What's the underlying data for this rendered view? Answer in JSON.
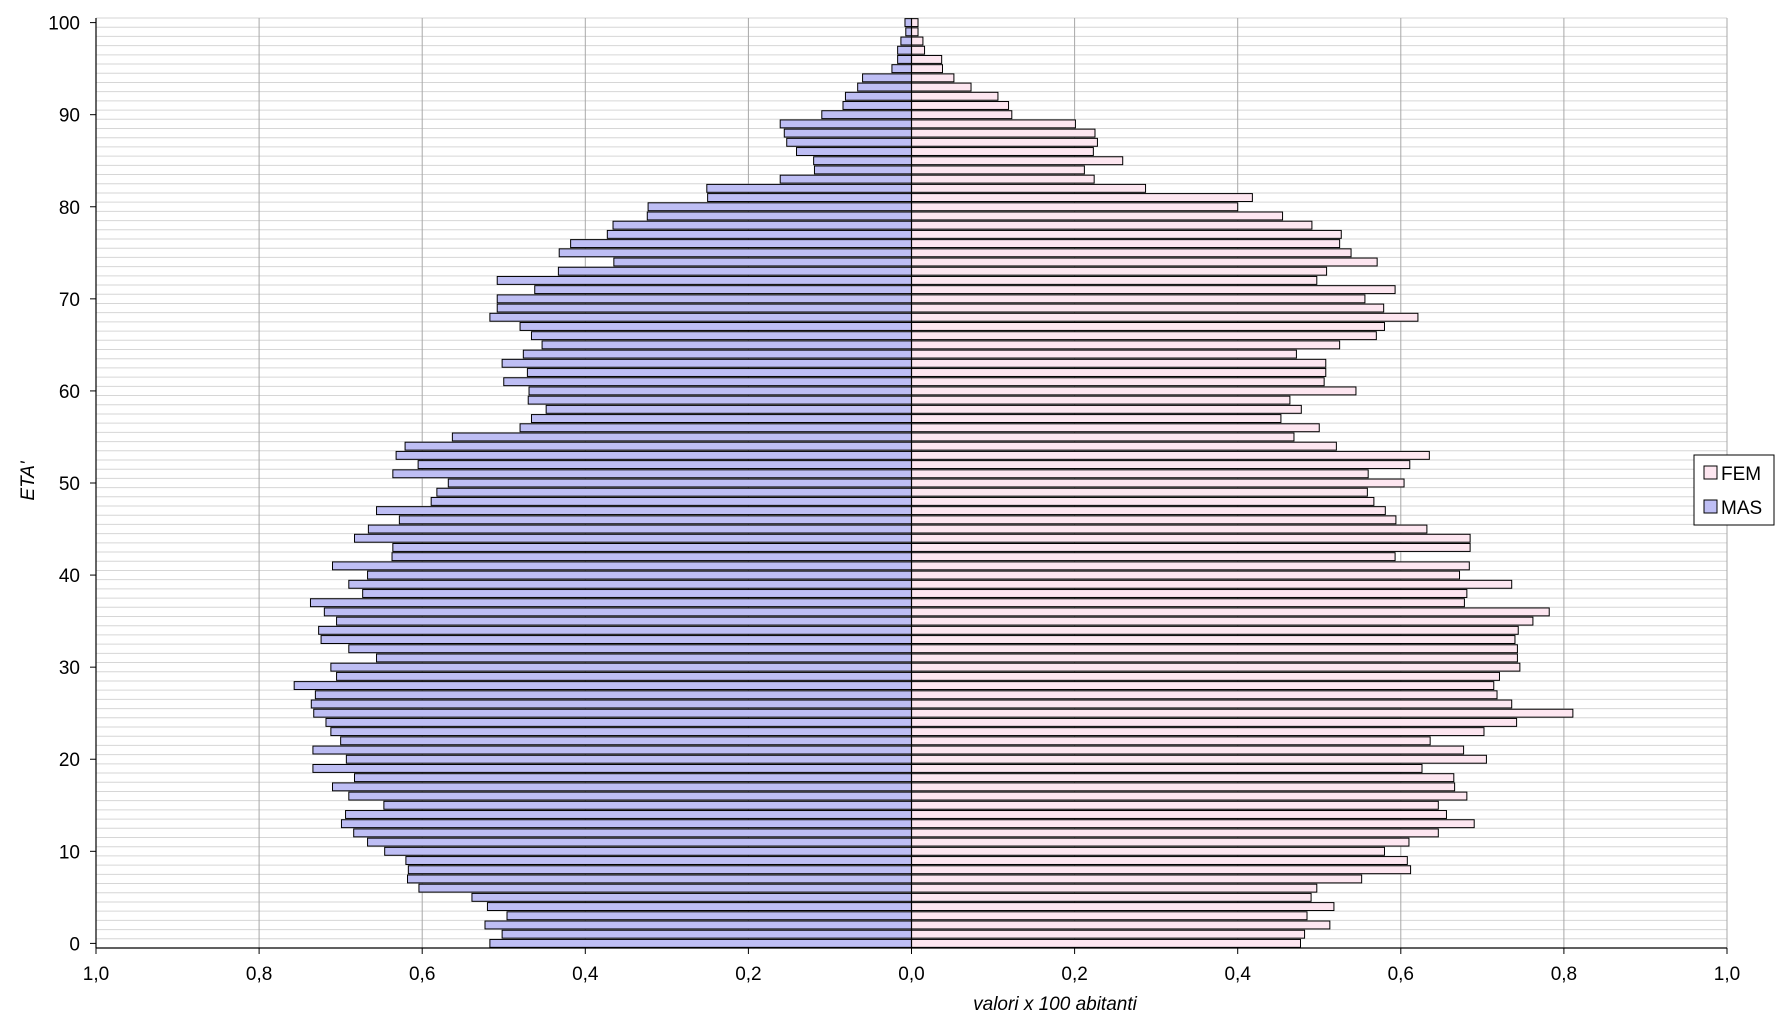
{
  "chart_data": {
    "type": "bar",
    "orientation": "horizontal-population-pyramid",
    "xlabel": "valori x 100 abitanti",
    "ylabel": "ETA'",
    "xlim": [
      -1.0,
      1.0
    ],
    "ylim": [
      0,
      100
    ],
    "x_tick_labels": [
      "1,0",
      "0,8",
      "0,6",
      "0,4",
      "0,2",
      "0,0",
      "0,2",
      "0,4",
      "0,6",
      "0,8",
      "1,0"
    ],
    "y_tick_labels": [
      "0",
      "10",
      "20",
      "30",
      "40",
      "50",
      "60",
      "70",
      "80",
      "90",
      "100"
    ],
    "grid": "vertical major + horizontal minor",
    "legend_position": "right",
    "categories": [
      0,
      1,
      2,
      3,
      4,
      5,
      6,
      7,
      8,
      9,
      10,
      11,
      12,
      13,
      14,
      15,
      16,
      17,
      18,
      19,
      20,
      21,
      22,
      23,
      24,
      25,
      26,
      27,
      28,
      29,
      30,
      31,
      32,
      33,
      34,
      35,
      36,
      37,
      38,
      39,
      40,
      41,
      42,
      43,
      44,
      45,
      46,
      47,
      48,
      49,
      50,
      51,
      52,
      53,
      54,
      55,
      56,
      57,
      58,
      59,
      60,
      61,
      62,
      63,
      64,
      65,
      66,
      67,
      68,
      69,
      70,
      71,
      72,
      73,
      74,
      75,
      76,
      77,
      78,
      79,
      80,
      81,
      82,
      83,
      84,
      85,
      86,
      87,
      88,
      89,
      90,
      91,
      92,
      93,
      94,
      95,
      96,
      97,
      98,
      99,
      100
    ],
    "series": [
      {
        "name": "FEM",
        "color": "#fde6f0",
        "values": [
          0.477,
          0.482,
          0.513,
          0.485,
          0.518,
          0.49,
          0.497,
          0.552,
          0.612,
          0.608,
          0.58,
          0.61,
          0.646,
          0.69,
          0.656,
          0.646,
          0.681,
          0.666,
          0.665,
          0.626,
          0.705,
          0.677,
          0.636,
          0.702,
          0.742,
          0.811,
          0.736,
          0.718,
          0.714,
          0.721,
          0.746,
          0.743,
          0.743,
          0.74,
          0.744,
          0.762,
          0.782,
          0.678,
          0.681,
          0.736,
          0.672,
          0.684,
          0.593,
          0.685,
          0.685,
          0.632,
          0.594,
          0.581,
          0.567,
          0.559,
          0.604,
          0.56,
          0.611,
          0.635,
          0.521,
          0.469,
          0.5,
          0.453,
          0.478,
          0.464,
          0.545,
          0.506,
          0.508,
          0.508,
          0.472,
          0.525,
          0.57,
          0.58,
          0.621,
          0.579,
          0.556,
          0.593,
          0.497,
          0.509,
          0.571,
          0.539,
          0.525,
          0.527,
          0.491,
          0.455,
          0.4,
          0.418,
          0.287,
          0.224,
          0.212,
          0.259,
          0.223,
          0.228,
          0.225,
          0.201,
          0.123,
          0.119,
          0.106,
          0.073,
          0.052,
          0.038,
          0.037,
          0.016,
          0.014,
          0.008,
          0.008
        ]
      },
      {
        "name": "MAS",
        "color": "#bebef4",
        "values": [
          0.517,
          0.502,
          0.523,
          0.496,
          0.52,
          0.539,
          0.604,
          0.618,
          0.617,
          0.62,
          0.646,
          0.667,
          0.684,
          0.699,
          0.694,
          0.647,
          0.69,
          0.71,
          0.683,
          0.734,
          0.693,
          0.734,
          0.7,
          0.712,
          0.718,
          0.733,
          0.736,
          0.731,
          0.757,
          0.705,
          0.712,
          0.656,
          0.69,
          0.724,
          0.727,
          0.705,
          0.72,
          0.737,
          0.673,
          0.69,
          0.667,
          0.71,
          0.637,
          0.636,
          0.683,
          0.666,
          0.628,
          0.656,
          0.589,
          0.582,
          0.568,
          0.636,
          0.605,
          0.632,
          0.621,
          0.563,
          0.48,
          0.466,
          0.448,
          0.47,
          0.469,
          0.5,
          0.471,
          0.502,
          0.476,
          0.453,
          0.466,
          0.48,
          0.517,
          0.508,
          0.508,
          0.462,
          0.508,
          0.433,
          0.365,
          0.432,
          0.418,
          0.373,
          0.366,
          0.324,
          0.323,
          0.25,
          0.251,
          0.161,
          0.119,
          0.12,
          0.141,
          0.153,
          0.156,
          0.161,
          0.11,
          0.084,
          0.081,
          0.066,
          0.06,
          0.024,
          0.017,
          0.017,
          0.013,
          0.007,
          0.008
        ]
      }
    ]
  }
}
